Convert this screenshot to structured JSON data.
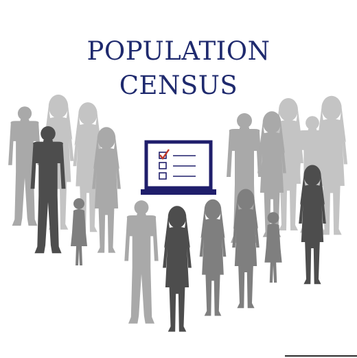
{
  "title": {
    "line1": "POPULATION",
    "line2": "CENSUS"
  },
  "colors": {
    "title": "#1f2a6e",
    "laptop": "#1f1e6b",
    "check_mark": "#c0392b",
    "dark_silhouette": "#4d4d4d",
    "mid_silhouette": "#7a7a7a",
    "light_silhouette": "#a9a9a9",
    "pale_silhouette": "#c4c4c4"
  },
  "icons": [
    "laptop-icon",
    "checklist-icon",
    "people-silhouettes"
  ]
}
